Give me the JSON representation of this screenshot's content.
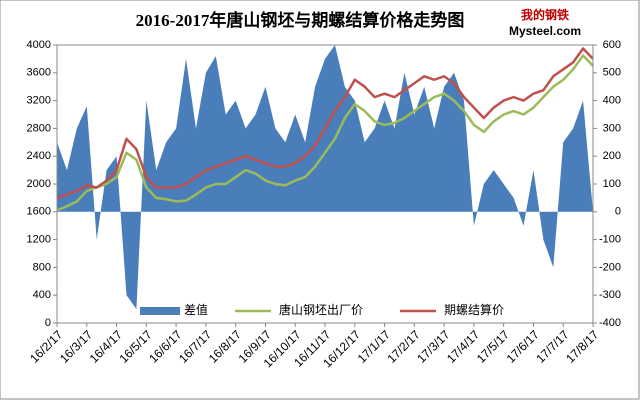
{
  "chart_data": {
    "type": "line",
    "title": "2016-2017年唐山钢坯与期螺结算价格走势图",
    "logo": [
      "我的钢铁",
      "Mysteel.com"
    ],
    "categories": [
      "16/2/17",
      null,
      null,
      "16/3/17",
      null,
      null,
      "16/4/17",
      null,
      null,
      "16/5/17",
      null,
      null,
      "16/6/17",
      null,
      null,
      "16/7/17",
      null,
      null,
      "16/8/17",
      null,
      null,
      "16/9/17",
      null,
      null,
      "16/10/17",
      null,
      null,
      "16/11/17",
      null,
      null,
      "16/12/17",
      null,
      null,
      "17/1/17",
      null,
      null,
      "17/2/17",
      null,
      null,
      "17/3/17",
      null,
      null,
      "17/4/17",
      null,
      null,
      "17/5/17",
      null,
      null,
      "17/6/17",
      null,
      null,
      "17/7/17",
      null,
      null,
      "17/8/17"
    ],
    "series": [
      {
        "name": "差值",
        "color": "#4a7ebb",
        "axis": "y2",
        "area": true,
        "values": [
          250,
          150,
          300,
          380,
          -100,
          150,
          200,
          -300,
          -350,
          400,
          150,
          250,
          300,
          550,
          300,
          500,
          560,
          350,
          400,
          300,
          350,
          450,
          300,
          250,
          350,
          250,
          450,
          550,
          600,
          450,
          400,
          250,
          300,
          400,
          300,
          500,
          350,
          450,
          300,
          450,
          500,
          400,
          -50,
          100,
          150,
          100,
          50,
          -50,
          150,
          -100,
          -200,
          250,
          300,
          400,
          0
        ]
      },
      {
        "name": "唐山钢坯出厂价",
        "color": "#9bbb59",
        "values": [
          1620,
          1680,
          1750,
          1900,
          1950,
          2000,
          2100,
          2450,
          2350,
          1950,
          1800,
          1780,
          1750,
          1760,
          1850,
          1950,
          2000,
          2000,
          2100,
          2200,
          2150,
          2050,
          2000,
          1980,
          2050,
          2100,
          2250,
          2450,
          2650,
          2950,
          3150,
          3050,
          2900,
          2850,
          2880,
          2950,
          3050,
          3150,
          3250,
          3300,
          3200,
          3050,
          2850,
          2750,
          2900,
          3000,
          3050,
          3000,
          3100,
          3250,
          3400,
          3500,
          3650,
          3850,
          3700
        ]
      },
      {
        "name": "期螺结算价",
        "color": "#c0504d",
        "values": [
          1800,
          1850,
          1900,
          1980,
          1950,
          2050,
          2200,
          2650,
          2500,
          2100,
          1950,
          1950,
          1950,
          2000,
          2100,
          2200,
          2250,
          2300,
          2350,
          2400,
          2350,
          2300,
          2250,
          2250,
          2300,
          2400,
          2550,
          2800,
          3050,
          3250,
          3500,
          3400,
          3250,
          3300,
          3250,
          3350,
          3450,
          3550,
          3500,
          3550,
          3450,
          3250,
          3100,
          2950,
          3100,
          3200,
          3250,
          3200,
          3300,
          3350,
          3550,
          3650,
          3750,
          3950,
          3800
        ]
      }
    ],
    "ylim": [
      0,
      4000
    ],
    "yticks": [
      0,
      400,
      800,
      1200,
      1600,
      2000,
      2400,
      2800,
      3200,
      3600,
      4000
    ],
    "y2lim": [
      -400,
      600
    ],
    "y2ticks": [
      -400,
      -300,
      -200,
      -100,
      0,
      100,
      200,
      300,
      400,
      500,
      600
    ]
  }
}
